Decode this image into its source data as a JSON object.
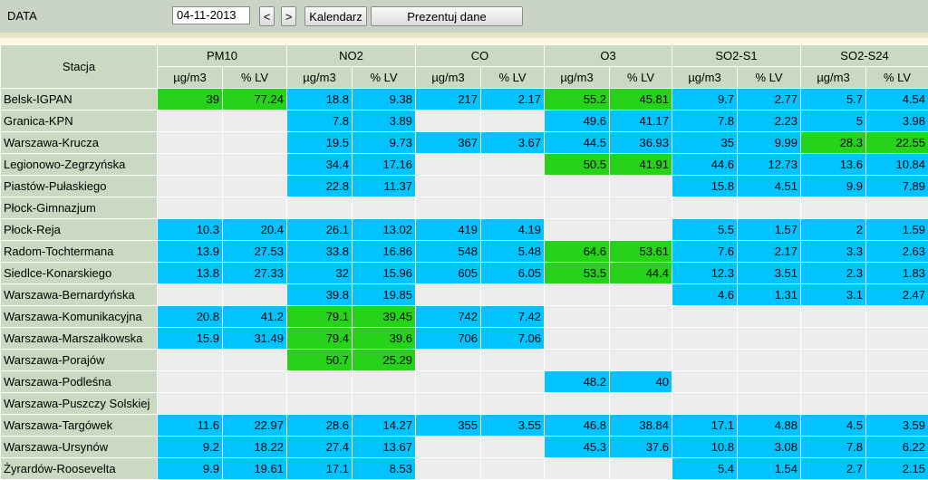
{
  "toolbar": {
    "date_label": "DATA",
    "date_value": "04-11-2013",
    "prev_label": "<",
    "next_label": ">",
    "calendar_label": "Kalendarz",
    "show_label": "Prezentuj dane"
  },
  "table": {
    "station_header": "Stacja",
    "pollutants": [
      "PM10",
      "NO2",
      "CO",
      "O3",
      "SO2-S1",
      "SO2-S24"
    ],
    "unit_labels": [
      "µg/m3",
      "% LV"
    ],
    "colors": {
      "good": "#00c3ff",
      "moderate": "#26d31a",
      "no_data": "#ececec",
      "header": "#c9d9c2"
    },
    "rows": [
      {
        "station": "Belsk-IGPAN",
        "cells": [
          [
            "39",
            "77.24",
            "g"
          ],
          [
            "18.8",
            "9.38",
            "b"
          ],
          [
            "217",
            "2.17",
            "b"
          ],
          [
            "55.2",
            "45.81",
            "g"
          ],
          [
            "9.7",
            "2.77",
            "b"
          ],
          [
            "5.7",
            "4.54",
            "b"
          ]
        ]
      },
      {
        "station": "Granica-KPN",
        "cells": [
          [
            "",
            "",
            ""
          ],
          [
            "7.8",
            "3.89",
            "b"
          ],
          [
            "",
            "",
            ""
          ],
          [
            "49.6",
            "41.17",
            "b"
          ],
          [
            "7.8",
            "2.23",
            "b"
          ],
          [
            "5",
            "3.98",
            "b"
          ]
        ]
      },
      {
        "station": "Warszawa-Krucza",
        "cells": [
          [
            "",
            "",
            ""
          ],
          [
            "19.5",
            "9.73",
            "b"
          ],
          [
            "367",
            "3.67",
            "b"
          ],
          [
            "44.5",
            "36.93",
            "b"
          ],
          [
            "35",
            "9.99",
            "b"
          ],
          [
            "28.3",
            "22.55",
            "g"
          ]
        ]
      },
      {
        "station": "Legionowo-Zegrzyńska",
        "cells": [
          [
            "",
            "",
            ""
          ],
          [
            "34.4",
            "17.16",
            "b"
          ],
          [
            "",
            "",
            ""
          ],
          [
            "50.5",
            "41.91",
            "g"
          ],
          [
            "44.6",
            "12.73",
            "b"
          ],
          [
            "13.6",
            "10.84",
            "b"
          ]
        ]
      },
      {
        "station": "Piastów-Pułaskiego",
        "cells": [
          [
            "",
            "",
            ""
          ],
          [
            "22.8",
            "11.37",
            "b"
          ],
          [
            "",
            "",
            ""
          ],
          [
            "",
            "",
            ""
          ],
          [
            "15.8",
            "4.51",
            "b"
          ],
          [
            "9.9",
            "7.89",
            "b"
          ]
        ]
      },
      {
        "station": "Płock-Gimnazjum",
        "cells": [
          [
            "",
            "",
            ""
          ],
          [
            "",
            "",
            ""
          ],
          [
            "",
            "",
            ""
          ],
          [
            "",
            "",
            ""
          ],
          [
            "",
            "",
            ""
          ],
          [
            "",
            "",
            ""
          ]
        ]
      },
      {
        "station": "Płock-Reja",
        "cells": [
          [
            "10.3",
            "20.4",
            "b"
          ],
          [
            "26.1",
            "13.02",
            "b"
          ],
          [
            "419",
            "4.19",
            "b"
          ],
          [
            "",
            "",
            ""
          ],
          [
            "5.5",
            "1.57",
            "b"
          ],
          [
            "2",
            "1.59",
            "b"
          ]
        ]
      },
      {
        "station": "Radom-Tochtermana",
        "cells": [
          [
            "13.9",
            "27.53",
            "b"
          ],
          [
            "33.8",
            "16.86",
            "b"
          ],
          [
            "548",
            "5.48",
            "b"
          ],
          [
            "64.6",
            "53.61",
            "g"
          ],
          [
            "7.6",
            "2.17",
            "b"
          ],
          [
            "3.3",
            "2.63",
            "b"
          ]
        ]
      },
      {
        "station": "Siedlce-Konarskiego",
        "cells": [
          [
            "13.8",
            "27.33",
            "b"
          ],
          [
            "32",
            "15.96",
            "b"
          ],
          [
            "605",
            "6.05",
            "b"
          ],
          [
            "53.5",
            "44.4",
            "g"
          ],
          [
            "12.3",
            "3.51",
            "b"
          ],
          [
            "2.3",
            "1.83",
            "b"
          ]
        ]
      },
      {
        "station": "Warszawa-Bernardyńska",
        "cells": [
          [
            "",
            "",
            ""
          ],
          [
            "39.8",
            "19.85",
            "b"
          ],
          [
            "",
            "",
            ""
          ],
          [
            "",
            "",
            ""
          ],
          [
            "4.6",
            "1.31",
            "b"
          ],
          [
            "3.1",
            "2.47",
            "b"
          ]
        ]
      },
      {
        "station": "Warszawa-Komunikacyjna",
        "cells": [
          [
            "20.8",
            "41.2",
            "b"
          ],
          [
            "79.1",
            "39.45",
            "g"
          ],
          [
            "742",
            "7.42",
            "b"
          ],
          [
            "",
            "",
            ""
          ],
          [
            "",
            "",
            ""
          ],
          [
            "",
            "",
            ""
          ]
        ]
      },
      {
        "station": "Warszawa-Marszałkowska",
        "cells": [
          [
            "15.9",
            "31.49",
            "b"
          ],
          [
            "79.4",
            "39.6",
            "g"
          ],
          [
            "706",
            "7.06",
            "b"
          ],
          [
            "",
            "",
            ""
          ],
          [
            "",
            "",
            ""
          ],
          [
            "",
            "",
            ""
          ]
        ]
      },
      {
        "station": "Warszawa-Porajów",
        "cells": [
          [
            "",
            "",
            ""
          ],
          [
            "50.7",
            "25.29",
            "g"
          ],
          [
            "",
            "",
            ""
          ],
          [
            "",
            "",
            ""
          ],
          [
            "",
            "",
            ""
          ],
          [
            "",
            "",
            ""
          ]
        ]
      },
      {
        "station": "Warszawa-Podleśna",
        "cells": [
          [
            "",
            "",
            ""
          ],
          [
            "",
            "",
            ""
          ],
          [
            "",
            "",
            ""
          ],
          [
            "48.2",
            "40",
            "b"
          ],
          [
            "",
            "",
            ""
          ],
          [
            "",
            "",
            ""
          ]
        ]
      },
      {
        "station": "Warszawa-Puszczy Solskiej",
        "cells": [
          [
            "",
            "",
            ""
          ],
          [
            "",
            "",
            ""
          ],
          [
            "",
            "",
            ""
          ],
          [
            "",
            "",
            ""
          ],
          [
            "",
            "",
            ""
          ],
          [
            "",
            "",
            ""
          ]
        ]
      },
      {
        "station": "Warszawa-Targówek",
        "cells": [
          [
            "11.6",
            "22.97",
            "b"
          ],
          [
            "28.6",
            "14.27",
            "b"
          ],
          [
            "355",
            "3.55",
            "b"
          ],
          [
            "46.8",
            "38.84",
            "b"
          ],
          [
            "17.1",
            "4.88",
            "b"
          ],
          [
            "4.5",
            "3.59",
            "b"
          ]
        ]
      },
      {
        "station": "Warszawa-Ursynów",
        "cells": [
          [
            "9.2",
            "18.22",
            "b"
          ],
          [
            "27.4",
            "13.67",
            "b"
          ],
          [
            "",
            "",
            ""
          ],
          [
            "45.3",
            "37.6",
            "b"
          ],
          [
            "10.8",
            "3.08",
            "b"
          ],
          [
            "7.8",
            "6.22",
            "b"
          ]
        ]
      },
      {
        "station": "Żyrardów-Roosevelta",
        "cells": [
          [
            "9.9",
            "19.61",
            "b"
          ],
          [
            "17.1",
            "8.53",
            "b"
          ],
          [
            "",
            "",
            ""
          ],
          [
            "",
            "",
            ""
          ],
          [
            "5.4",
            "1.54",
            "b"
          ],
          [
            "2.7",
            "2.15",
            "b"
          ]
        ]
      }
    ]
  }
}
